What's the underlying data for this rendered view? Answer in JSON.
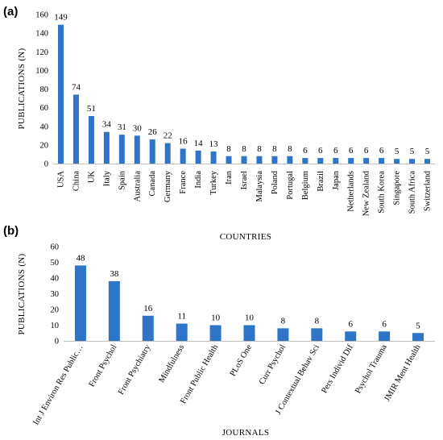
{
  "chart_data": [
    {
      "panel_label": "(a)",
      "type": "bar",
      "xlabel": "COUNTRIES",
      "ylabel": "PUBLICATIONS (N)",
      "ylim": [
        0,
        160
      ],
      "yticks": [
        0,
        20,
        40,
        60,
        80,
        100,
        120,
        140,
        160
      ],
      "grid": false,
      "bar_color": "#2e75c7",
      "categories": [
        "USA",
        "China",
        "UK",
        "Italy",
        "Spain",
        "Australia",
        "Canada",
        "Germany",
        "France",
        "India",
        "Turkey",
        "Iran",
        "Israel",
        "Malaysia",
        "Poland",
        "Portugal",
        "Belgium",
        "Brazil",
        "Japan",
        "Netherlands",
        "New Zealand",
        "South Korea",
        "Singapore",
        "South Africa",
        "Switzerland"
      ],
      "values": [
        149,
        74,
        51,
        34,
        31,
        30,
        26,
        22,
        16,
        14,
        13,
        8,
        8,
        8,
        8,
        8,
        6,
        6,
        6,
        6,
        6,
        6,
        5,
        5,
        5
      ]
    },
    {
      "panel_label": "(b)",
      "type": "bar",
      "xlabel": "JOURNALS",
      "ylabel": "PUBLICATIONS (N)",
      "ylim": [
        0,
        60
      ],
      "yticks": [
        0,
        10,
        20,
        30,
        40,
        50,
        60
      ],
      "grid": false,
      "bar_color": "#2e75c7",
      "categories": [
        "Int J Environ Res Public…",
        "Front Psychol",
        "Front Psychiatry",
        "Mindfulness",
        "Front Public Health",
        "PLoS One",
        "Curr Psychol",
        "J Contextual Behav Sci",
        "Pers Individ Dif",
        "Psychol Trauma",
        "JMIR Ment Health"
      ],
      "values": [
        48,
        38,
        16,
        11,
        10,
        10,
        8,
        8,
        6,
        6,
        5
      ]
    }
  ]
}
